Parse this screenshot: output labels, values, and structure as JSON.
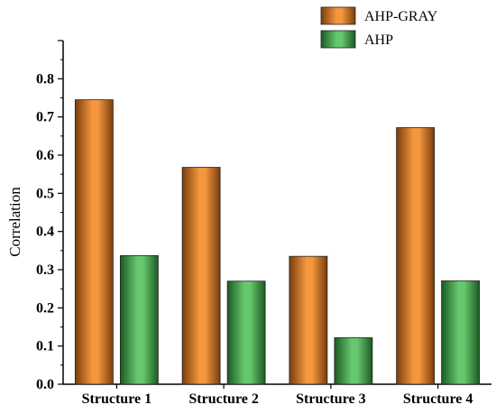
{
  "chart_data": {
    "type": "bar",
    "title": "",
    "xlabel": "",
    "ylabel": "Correlation",
    "ylim": [
      0,
      0.9
    ],
    "yticks": [
      "0.0",
      "0.1",
      "0.2",
      "0.3",
      "0.4",
      "0.5",
      "0.6",
      "0.7",
      "0.8"
    ],
    "categories": [
      "Structure 1",
      "Structure 2",
      "Structure 3",
      "Structure 4"
    ],
    "series": [
      {
        "name": "AHP-GRAY",
        "values": [
          0.745,
          0.568,
          0.335,
          0.672
        ],
        "color": "#f5973f",
        "shade": "#7a3d0c"
      },
      {
        "name": "AHP",
        "values": [
          0.337,
          0.27,
          0.122,
          0.271
        ],
        "color": "#66c86e",
        "shade": "#1c5a22"
      }
    ],
    "legend_position": "top-right",
    "grid": false
  }
}
